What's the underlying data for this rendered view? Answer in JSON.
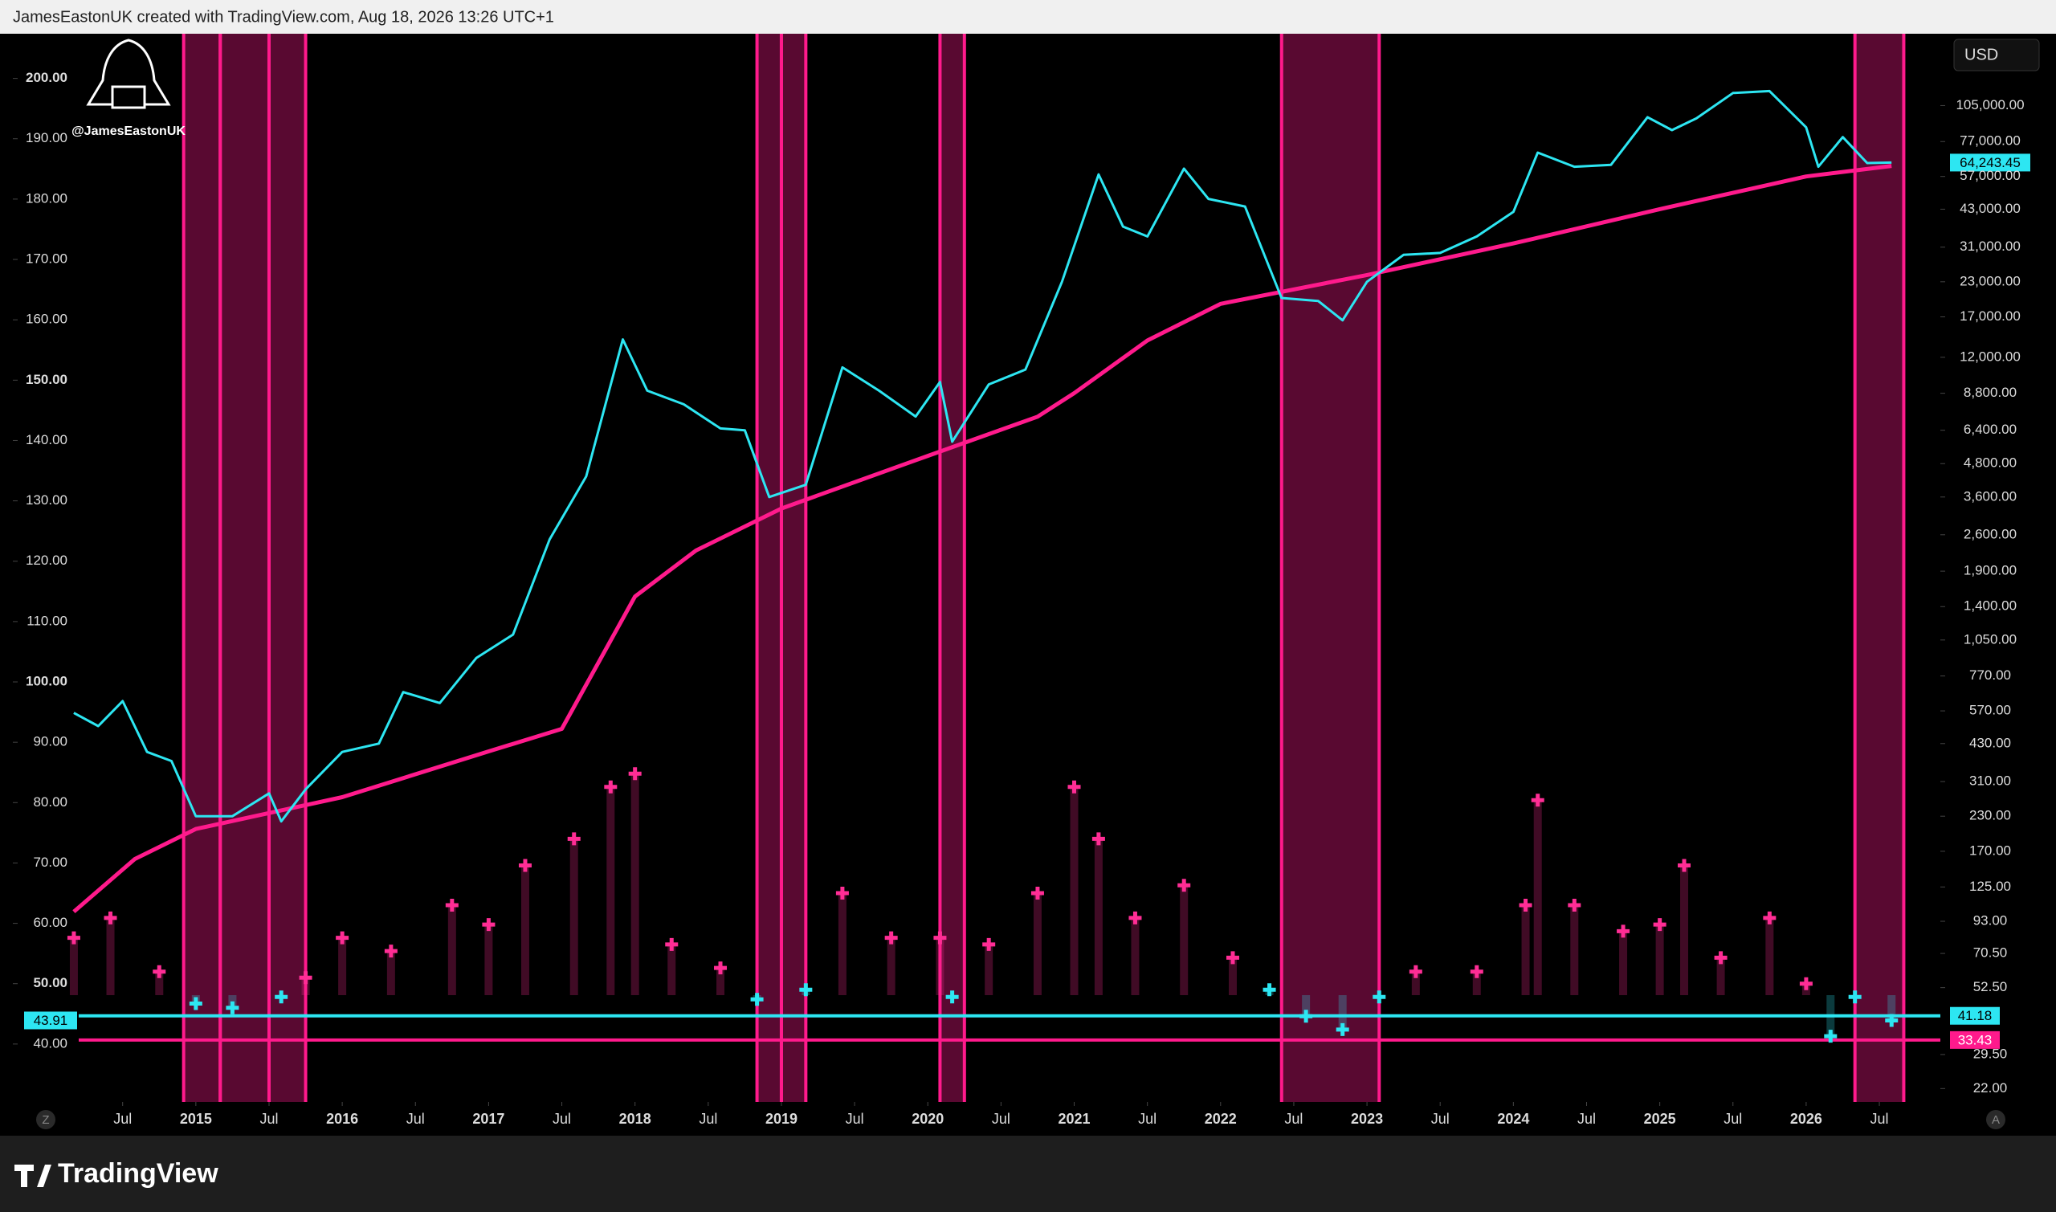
{
  "ui": {
    "header": "JamesEastonUK created with TradingView.com, Aug 18, 2026 13:26 UTC+1",
    "watermark": "@JamesEastonUK",
    "currency_button": "USD",
    "left_button": "Z",
    "right_button": "A",
    "footer_logo": "TradingView"
  },
  "chart_data": {
    "type": "line",
    "xlim": [
      "2013-10",
      "2026-12"
    ],
    "xticks": [
      {
        "value": "2014-07",
        "label": "Jul"
      },
      {
        "value": "2015-01",
        "label": "2015"
      },
      {
        "value": "2015-07",
        "label": "Jul"
      },
      {
        "value": "2016-01",
        "label": "2016"
      },
      {
        "value": "2016-07",
        "label": "Jul"
      },
      {
        "value": "2017-01",
        "label": "2017"
      },
      {
        "value": "2017-07",
        "label": "Jul"
      },
      {
        "value": "2018-01",
        "label": "2018"
      },
      {
        "value": "2018-07",
        "label": "Jul"
      },
      {
        "value": "2019-01",
        "label": "2019"
      },
      {
        "value": "2019-07",
        "label": "Jul"
      },
      {
        "value": "2020-01",
        "label": "2020"
      },
      {
        "value": "2020-07",
        "label": "Jul"
      },
      {
        "value": "2021-01",
        "label": "2021"
      },
      {
        "value": "2021-07",
        "label": "Jul"
      },
      {
        "value": "2022-01",
        "label": "2022"
      },
      {
        "value": "2022-07",
        "label": "Jul"
      },
      {
        "value": "2023-01",
        "label": "2023"
      },
      {
        "value": "2023-07",
        "label": "Jul"
      },
      {
        "value": "2024-01",
        "label": "2024"
      },
      {
        "value": "2024-07",
        "label": "Jul"
      },
      {
        "value": "2025-01",
        "label": "2025"
      },
      {
        "value": "2025-07",
        "label": "Jul"
      },
      {
        "value": "2026-01",
        "label": "2026"
      },
      {
        "value": "2026-07",
        "label": "Jul"
      }
    ],
    "ylim": [
      30.4,
      207.4
    ],
    "yticks": [
      {
        "value": 200,
        "label": "200.00"
      },
      {
        "value": 190,
        "label": "190.00"
      },
      {
        "value": 180,
        "label": "180.00"
      },
      {
        "value": 170,
        "label": "170.00"
      },
      {
        "value": 160,
        "label": "160.00"
      },
      {
        "value": 150,
        "label": "150.00"
      },
      {
        "value": 140,
        "label": "140.00"
      },
      {
        "value": 130,
        "label": "130.00"
      },
      {
        "value": 120,
        "label": "120.00"
      },
      {
        "value": 110,
        "label": "110.00"
      },
      {
        "value": 100,
        "label": "100.00"
      },
      {
        "value": 90,
        "label": "90.00"
      },
      {
        "value": 80,
        "label": "80.00"
      },
      {
        "value": 70,
        "label": "70.00"
      },
      {
        "value": 60,
        "label": "60.00"
      },
      {
        "value": 50,
        "label": "50.00"
      },
      {
        "value": 40,
        "label": "40.00"
      }
    ],
    "y2lim": [
      19.6,
      195000
    ],
    "y2log": true,
    "y2ticks": [
      {
        "value": 105000,
        "label": "105,000.00"
      },
      {
        "value": 77000,
        "label": "77,000.00"
      },
      {
        "value": 57000,
        "label": "57,000.00"
      },
      {
        "value": 43000,
        "label": "43,000.00"
      },
      {
        "value": 31000,
        "label": "31,000.00"
      },
      {
        "value": 23000,
        "label": "23,000.00"
      },
      {
        "value": 17000,
        "label": "17,000.00"
      },
      {
        "value": 12000,
        "label": "12,000.00"
      },
      {
        "value": 8800,
        "label": "8,800.00"
      },
      {
        "value": 6400,
        "label": "6,400.00"
      },
      {
        "value": 4800,
        "label": "4,800.00"
      },
      {
        "value": 3600,
        "label": "3,600.00"
      },
      {
        "value": 2600,
        "label": "2,600.00"
      },
      {
        "value": 1900,
        "label": "1,900.00"
      },
      {
        "value": 1400,
        "label": "1,400.00"
      },
      {
        "value": 1050,
        "label": "1,050.00"
      },
      {
        "value": 770,
        "label": "770.00"
      },
      {
        "value": 570,
        "label": "570.00"
      },
      {
        "value": 430,
        "label": "430.00"
      },
      {
        "value": 310,
        "label": "310.00"
      },
      {
        "value": 230,
        "label": "230.00"
      },
      {
        "value": 170,
        "label": "170.00"
      },
      {
        "value": 125,
        "label": "125.00"
      },
      {
        "value": 93,
        "label": "93.00"
      },
      {
        "value": 70.5,
        "label": "70.50"
      },
      {
        "value": 52.5,
        "label": "52.50"
      },
      {
        "value": 29.5,
        "label": "29.50"
      },
      {
        "value": 22,
        "label": "22.00"
      }
    ],
    "shading": {
      "color": "#ff1a8c",
      "spans": [
        [
          "2014-12",
          "2015-02"
        ],
        [
          "2015-03",
          "2015-06"
        ],
        [
          "2015-07",
          "2015-09"
        ],
        [
          "2018-11",
          "2018-12"
        ],
        [
          "2019-01",
          "2019-02"
        ],
        [
          "2020-02",
          "2020-03"
        ],
        [
          "2022-06",
          "2023-01"
        ],
        [
          "2026-05",
          "2026-08"
        ]
      ]
    },
    "hlines": [
      {
        "value": 41.18,
        "axis": "y2",
        "color": "#2de6f2"
      },
      {
        "value": 33.43,
        "axis": "y2",
        "color": "#ff1a8c"
      }
    ],
    "series": [
      {
        "type": "scatter",
        "axis": "y",
        "color": "#ff2d95",
        "x": [
          "2014-03",
          "2014-06",
          "2014-10",
          "2015-01",
          "2015-04",
          "2015-08",
          "2015-10",
          "2016-01",
          "2016-05",
          "2016-10",
          "2017-01",
          "2017-04",
          "2017-08",
          "2017-11",
          "2018-01",
          "2018-04",
          "2018-08",
          "2018-11",
          "2019-03",
          "2019-06",
          "2019-10",
          "2020-02",
          "2020-03",
          "2020-06",
          "2020-10",
          "2021-01",
          "2021-03",
          "2021-06",
          "2021-10",
          "2022-02",
          "2022-05",
          "2022-08",
          "2022-11",
          "2023-02",
          "2023-05",
          "2023-10",
          "2024-02",
          "2024-03",
          "2024-06",
          "2024-10",
          "2025-01",
          "2025-03",
          "2025-06",
          "2025-10",
          "2026-01",
          "2026-03",
          "2026-05",
          "2026-08"
        ],
        "values": [
          57.6,
          60.9,
          52,
          null,
          null,
          null,
          51,
          57.6,
          55.4,
          63,
          59.8,
          69.6,
          74,
          82.6,
          84.8,
          56.5,
          52.6,
          null,
          null,
          65,
          57.6,
          57.6,
          null,
          56.5,
          65,
          82.6,
          74,
          60.9,
          66.3,
          54.3,
          null,
          null,
          null,
          null,
          52,
          52,
          63,
          80.4,
          63,
          58.7,
          59.8,
          69.6,
          54.3,
          60.9,
          50,
          null,
          null,
          null
        ]
      },
      {
        "type": "scatter",
        "axis": "y",
        "color": "#2de6f2",
        "x": [
          "2014-03",
          "2014-06",
          "2014-10",
          "2015-01",
          "2015-04",
          "2015-08",
          "2015-10",
          "2016-01",
          "2016-05",
          "2016-10",
          "2017-01",
          "2017-04",
          "2017-08",
          "2017-11",
          "2018-01",
          "2018-04",
          "2018-08",
          "2018-11",
          "2019-03",
          "2019-06",
          "2019-10",
          "2020-02",
          "2020-03",
          "2020-06",
          "2020-10",
          "2021-01",
          "2021-03",
          "2021-06",
          "2021-10",
          "2022-02",
          "2022-05",
          "2022-08",
          "2022-11",
          "2023-02",
          "2023-05",
          "2023-10",
          "2024-02",
          "2024-03",
          "2024-06",
          "2024-10",
          "2025-01",
          "2025-03",
          "2025-06",
          "2025-10",
          "2026-01",
          "2026-03",
          "2026-05",
          "2026-08"
        ],
        "values": [
          null,
          null,
          null,
          46.7,
          46,
          47.8,
          null,
          null,
          null,
          null,
          null,
          null,
          null,
          null,
          null,
          null,
          null,
          47.4,
          49,
          null,
          null,
          null,
          47.8,
          null,
          null,
          null,
          null,
          null,
          null,
          null,
          49,
          44.6,
          42.4,
          47.8,
          null,
          null,
          null,
          null,
          null,
          null,
          null,
          null,
          null,
          null,
          null,
          41.3,
          47.8,
          43.91
        ]
      },
      {
        "type": "line",
        "axis": "y2",
        "color": "#ff1a8c",
        "x": [
          "2014-03",
          "2014-08",
          "2015-01",
          "2016-01",
          "2017-01",
          "2017-07",
          "2018-01",
          "2018-06",
          "2019-01",
          "2020-01",
          "2020-10",
          "2021-01",
          "2021-07",
          "2022-01",
          "2023-01",
          "2024-01",
          "2025-01",
          "2026-01",
          "2026-08"
        ],
        "values": [
          101,
          159,
          206,
          271,
          402,
          488,
          1528,
          2270,
          3260,
          5130,
          7190,
          8810,
          13870,
          19020,
          24390,
          32000,
          43000,
          57000,
          62400
        ]
      },
      {
        "type": "line",
        "axis": "y2",
        "color": "#2de6f2",
        "x": [
          "2014-03",
          "2014-05",
          "2014-07",
          "2014-09",
          "2014-11",
          "2015-01",
          "2015-04",
          "2015-07",
          "2015-08",
          "2015-10",
          "2016-01",
          "2016-04",
          "2016-06",
          "2016-09",
          "2016-12",
          "2017-03",
          "2017-06",
          "2017-09",
          "2017-12",
          "2018-02",
          "2018-05",
          "2018-08",
          "2018-10",
          "2018-12",
          "2019-03",
          "2019-06",
          "2019-09",
          "2019-12",
          "2020-02",
          "2020-03",
          "2020-06",
          "2020-09",
          "2020-12",
          "2021-03",
          "2021-05",
          "2021-07",
          "2021-10",
          "2021-12",
          "2022-03",
          "2022-06",
          "2022-09",
          "2022-11",
          "2023-01",
          "2023-04",
          "2023-07",
          "2023-10",
          "2024-01",
          "2024-03",
          "2024-06",
          "2024-09",
          "2024-12",
          "2025-02",
          "2025-04",
          "2025-07",
          "2025-10",
          "2026-01",
          "2026-02",
          "2026-04",
          "2026-06",
          "2026-08"
        ],
        "values": [
          560,
          500,
          620,
          400,
          370,
          230,
          230,
          280,
          220,
          290,
          400,
          430,
          670,
          610,
          900,
          1100,
          2500,
          4300,
          14000,
          9000,
          8000,
          6500,
          6400,
          3600,
          4000,
          11000,
          9000,
          7200,
          9700,
          5800,
          9500,
          10800,
          23000,
          58000,
          37000,
          34000,
          61000,
          47000,
          44000,
          20000,
          19500,
          16500,
          23000,
          29000,
          29500,
          34000,
          42000,
          70000,
          62000,
          63000,
          95000,
          85000,
          94000,
          117000,
          119000,
          87000,
          62000,
          80000,
          64000,
          64243.45
        ],
        "value_labels": [
          null,
          null,
          null,
          null,
          null,
          null,
          null,
          null,
          null,
          null,
          null,
          null,
          null,
          null,
          null,
          null,
          null,
          null,
          null,
          null,
          null,
          null,
          null,
          null,
          null,
          null,
          null,
          null,
          null,
          null,
          null,
          null,
          null,
          null,
          null,
          null,
          null,
          null,
          null,
          null,
          null,
          null,
          null,
          null,
          null,
          null,
          null,
          null,
          null,
          null,
          null,
          null,
          null,
          null,
          null,
          null,
          null,
          null,
          null,
          "64,243.45"
        ]
      }
    ]
  }
}
